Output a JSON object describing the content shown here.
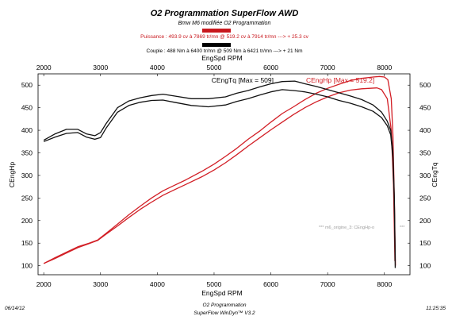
{
  "header": {
    "title": "O2 Programmation SuperFlow AWD",
    "subtitle": "Bmw M6 modifiée O2 Programmation",
    "power_line": "Puissance : 493.9 cv à 7869 tr/mn  @  519.2 cv à 7914 tr/mn   ---> + 25.3 cv",
    "torque_line": "Couple : 488 Nm à 6400 tr/mn  @  509 Nm à 6421 tr/mn   ---> + 21 Nm",
    "power_swatch_color": "#c8171d",
    "torque_swatch_color": "#000000"
  },
  "footer": {
    "date": "06/14/12",
    "center_line1": "O2 Programmation",
    "center_line2": "SuperFlow WinDyn™ V3.2",
    "time": "11:25:35"
  },
  "chart_data": {
    "type": "line",
    "xlabel_top": "EngSpd RPM",
    "xlabel_bottom": "EngSpd RPM",
    "ylabel_left": "CEngHp",
    "ylabel_right": "CEngTq",
    "xlim": [
      1900,
      8450
    ],
    "ylim_left": [
      80,
      525
    ],
    "ylim_right": [
      80,
      525
    ],
    "x_ticks": [
      2000,
      3000,
      4000,
      5000,
      6000,
      7000,
      8000
    ],
    "y_ticks_left": [
      100,
      150,
      200,
      250,
      300,
      350,
      400,
      450,
      500
    ],
    "y_ticks_right": [
      100,
      150,
      200,
      250,
      300,
      350,
      400,
      450,
      500
    ],
    "grid": false,
    "legend": {
      "torque_label": "CEngTq [Max = 509]",
      "power_label": "CEngHp [Max = 519.2]",
      "placement": "top-right"
    },
    "note": "*** m6_origine_3: CEngHp-o",
    "note_tail": "***",
    "series": [
      {
        "id": "hp_modified",
        "color": "#d21f26",
        "x": [
          2000,
          2200,
          2400,
          2600,
          2800,
          2950,
          3100,
          3300,
          3500,
          3700,
          3900,
          4100,
          4300,
          4500,
          4800,
          5000,
          5200,
          5400,
          5600,
          5800,
          6000,
          6200,
          6400,
          6600,
          6800,
          7000,
          7200,
          7400,
          7600,
          7800,
          7914,
          8000,
          8060,
          8120,
          8150,
          8175,
          8195
        ],
        "y": [
          105,
          118,
          130,
          142,
          150,
          157,
          172,
          192,
          213,
          232,
          250,
          266,
          278,
          290,
          310,
          325,
          342,
          360,
          380,
          398,
          418,
          437,
          452,
          468,
          482,
          493,
          502,
          510,
          515,
          518,
          519.2,
          518,
          512,
          470,
          390,
          250,
          100
        ]
      },
      {
        "id": "hp_original",
        "color": "#d21f26",
        "x": [
          2000,
          2200,
          2400,
          2600,
          2800,
          2950,
          3100,
          3300,
          3500,
          3700,
          3900,
          4100,
          4300,
          4500,
          4800,
          5000,
          5200,
          5400,
          5600,
          5800,
          6000,
          6200,
          6400,
          6600,
          6800,
          7000,
          7200,
          7400,
          7600,
          7869,
          7950,
          8050,
          8120,
          8160,
          8185
        ],
        "y": [
          105,
          116,
          128,
          140,
          149,
          156,
          170,
          188,
          207,
          225,
          241,
          256,
          268,
          280,
          298,
          312,
          328,
          346,
          365,
          383,
          401,
          418,
          435,
          450,
          463,
          474,
          483,
          489,
          492,
          493.9,
          490,
          470,
          400,
          280,
          110
        ]
      },
      {
        "id": "tq_modified",
        "color": "#111111",
        "x": [
          2000,
          2200,
          2400,
          2600,
          2750,
          2900,
          3000,
          3100,
          3300,
          3500,
          3700,
          3900,
          4100,
          4300,
          4600,
          4900,
          5200,
          5400,
          5600,
          5800,
          6000,
          6200,
          6421,
          6600,
          6800,
          7000,
          7200,
          7400,
          7600,
          7800,
          7950,
          8050,
          8110,
          8150,
          8175,
          8190
        ],
        "y": [
          378,
          392,
          402,
          402,
          392,
          388,
          395,
          415,
          450,
          465,
          472,
          477,
          480,
          476,
          470,
          470,
          474,
          482,
          488,
          496,
          503,
          508,
          509,
          503,
          497,
          490,
          483,
          476,
          468,
          456,
          440,
          420,
          400,
          350,
          250,
          110
        ]
      },
      {
        "id": "tq_original",
        "color": "#111111",
        "x": [
          2000,
          2200,
          2400,
          2600,
          2750,
          2900,
          3000,
          3100,
          3300,
          3500,
          3700,
          3900,
          4100,
          4300,
          4600,
          4900,
          5200,
          5400,
          5600,
          5800,
          6000,
          6200,
          6400,
          6600,
          6800,
          7000,
          7200,
          7400,
          7600,
          7800,
          7950,
          8050,
          8110,
          8150,
          8175,
          8190
        ],
        "y": [
          375,
          385,
          393,
          395,
          385,
          380,
          384,
          405,
          440,
          455,
          462,
          466,
          467,
          462,
          455,
          452,
          456,
          464,
          470,
          478,
          485,
          490,
          488,
          485,
          480,
          474,
          466,
          460,
          452,
          442,
          428,
          410,
          390,
          340,
          240,
          95
        ]
      }
    ]
  }
}
